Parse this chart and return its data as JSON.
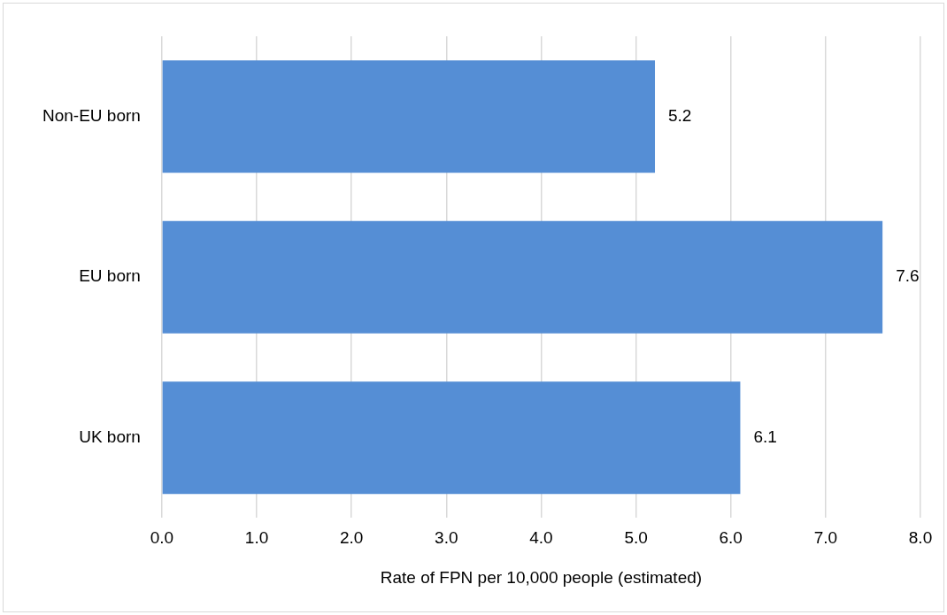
{
  "chart_data": {
    "type": "bar",
    "orientation": "horizontal",
    "categories": [
      "Non-EU born",
      "EU born",
      "UK born"
    ],
    "values": [
      5.2,
      7.6,
      6.1
    ],
    "color": "#558ed5",
    "data_labels": true,
    "xlabel": "Rate of FPN per 10,000 people (estimated)",
    "xlim": [
      0,
      8
    ],
    "xticks": [
      {
        "value": 0,
        "label": "0.0"
      },
      {
        "value": 1,
        "label": "1.0"
      },
      {
        "value": 2,
        "label": "2.0"
      },
      {
        "value": 3,
        "label": "3.0"
      },
      {
        "value": 4,
        "label": "4.0"
      },
      {
        "value": 5,
        "label": "5.0"
      },
      {
        "value": 6,
        "label": "6.0"
      },
      {
        "value": 7,
        "label": "7.0"
      },
      {
        "value": 8,
        "label": "8.0"
      }
    ],
    "grid": "x",
    "legend": false
  }
}
